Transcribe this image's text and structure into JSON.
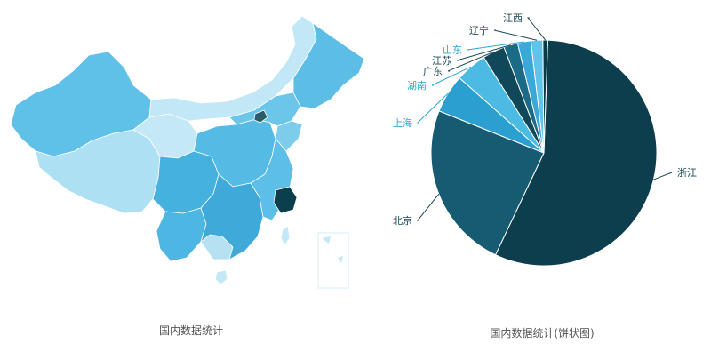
{
  "colors": {
    "darkest": "#0b3f4e",
    "dark": "#164f63",
    "mid_dark": "#1d6b84",
    "mid": "#2d9cc6",
    "mid_light": "#4cb6e1",
    "light": "#8ed0ee",
    "lightest": "#c7e9f7",
    "leader_dark": "#1f4a55",
    "leader_light": "#2aa6d6"
  },
  "chart_data": [
    {
      "type": "map",
      "title": "国内数据统计",
      "region": "China provinces (choropleth)",
      "highlighted": [
        {
          "province": "浙江",
          "shade": "darkest"
        },
        {
          "province": "北京",
          "shade": "dark"
        }
      ]
    },
    {
      "type": "pie",
      "title": "国内数据统计(饼状图)",
      "slices": [
        {
          "name": "浙江",
          "value": 56.5,
          "color": "#0d3e4d",
          "label_color": "#1f4a55"
        },
        {
          "name": "北京",
          "value": 24.0,
          "color": "#165b72",
          "label_color": "#1f4a55"
        },
        {
          "name": "上海",
          "value": 5.5,
          "color": "#2a9fd0",
          "label_color": "#2aa6d6"
        },
        {
          "name": "湖南",
          "value": 4.5,
          "color": "#4cbbe4",
          "label_color": "#2aa6d6"
        },
        {
          "name": "广东",
          "value": 3.2,
          "color": "#10485a",
          "label_color": "#1f4a55"
        },
        {
          "name": "江苏",
          "value": 2.0,
          "color": "#1b6a86",
          "label_color": "#1f4a55"
        },
        {
          "name": "山东",
          "value": 1.9,
          "color": "#3aa9d9",
          "label_color": "#2aa6d6"
        },
        {
          "name": "辽宁",
          "value": 1.7,
          "color": "#62c3ea",
          "label_color": "#1f4a55"
        },
        {
          "name": "江西",
          "value": 0.7,
          "color": "#0b3a47",
          "label_color": "#1f4a55"
        }
      ]
    }
  ]
}
